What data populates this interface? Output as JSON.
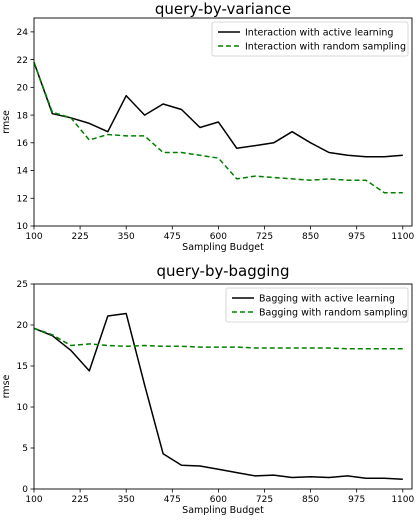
{
  "chart_data": [
    {
      "type": "line",
      "title": "query-by-variance",
      "xlabel": "Sampling Budget",
      "ylabel": "rmse",
      "xlim": [
        100,
        1125
      ],
      "ylim": [
        10,
        25
      ],
      "xticks": [
        100,
        225,
        350,
        475,
        600,
        725,
        850,
        975,
        1100
      ],
      "yticks": [
        10,
        12,
        14,
        16,
        18,
        20,
        22,
        24
      ],
      "grid": false,
      "legend": "top-right",
      "series": [
        {
          "name": "Interaction with active learning",
          "color": "#000000",
          "dash": "solid",
          "x": [
            100,
            150,
            200,
            250,
            300,
            350,
            400,
            450,
            500,
            550,
            600,
            650,
            700,
            750,
            800,
            850,
            900,
            950,
            1000,
            1050,
            1100
          ],
          "y": [
            21.8,
            18.1,
            17.8,
            17.4,
            16.8,
            19.4,
            18.0,
            18.8,
            18.4,
            17.1,
            17.5,
            15.6,
            15.8,
            16.0,
            16.8,
            16.0,
            15.3,
            15.1,
            15.0,
            15.0,
            15.1
          ]
        },
        {
          "name": "Interaction with random sampling",
          "color": "#008000",
          "dash": "dashed",
          "x": [
            100,
            150,
            200,
            250,
            300,
            350,
            400,
            450,
            500,
            550,
            600,
            650,
            700,
            750,
            800,
            850,
            900,
            950,
            1000,
            1050,
            1100
          ],
          "y": [
            21.8,
            18.2,
            17.8,
            16.2,
            16.6,
            16.5,
            16.5,
            15.3,
            15.3,
            15.1,
            14.9,
            13.4,
            13.6,
            13.5,
            13.4,
            13.3,
            13.4,
            13.3,
            13.3,
            12.4,
            12.4
          ]
        }
      ]
    },
    {
      "type": "line",
      "title": "query-by-bagging",
      "xlabel": "Sampling Budget",
      "ylabel": "rmse",
      "xlim": [
        100,
        1125
      ],
      "ylim": [
        0,
        25
      ],
      "xticks": [
        100,
        225,
        350,
        475,
        600,
        725,
        850,
        975,
        1100
      ],
      "yticks": [
        0,
        5,
        10,
        15,
        20,
        25
      ],
      "grid": false,
      "legend": "top-right",
      "series": [
        {
          "name": "Bagging with active learning",
          "color": "#000000",
          "dash": "solid",
          "x": [
            100,
            150,
            200,
            250,
            300,
            350,
            400,
            450,
            500,
            550,
            600,
            650,
            700,
            750,
            800,
            850,
            900,
            950,
            1000,
            1050,
            1100
          ],
          "y": [
            19.6,
            18.7,
            16.9,
            14.4,
            21.1,
            21.4,
            12.7,
            4.3,
            2.9,
            2.8,
            2.4,
            2.0,
            1.6,
            1.7,
            1.4,
            1.5,
            1.4,
            1.6,
            1.3,
            1.3,
            1.2
          ]
        },
        {
          "name": "Bagging with random sampling",
          "color": "#008000",
          "dash": "dashed",
          "x": [
            100,
            150,
            200,
            250,
            300,
            350,
            400,
            450,
            500,
            550,
            600,
            650,
            700,
            750,
            800,
            850,
            900,
            950,
            1000,
            1050,
            1100
          ],
          "y": [
            19.6,
            18.8,
            17.5,
            17.7,
            17.5,
            17.4,
            17.5,
            17.4,
            17.4,
            17.3,
            17.3,
            17.3,
            17.2,
            17.2,
            17.2,
            17.2,
            17.2,
            17.1,
            17.1,
            17.1,
            17.1
          ]
        }
      ]
    }
  ]
}
